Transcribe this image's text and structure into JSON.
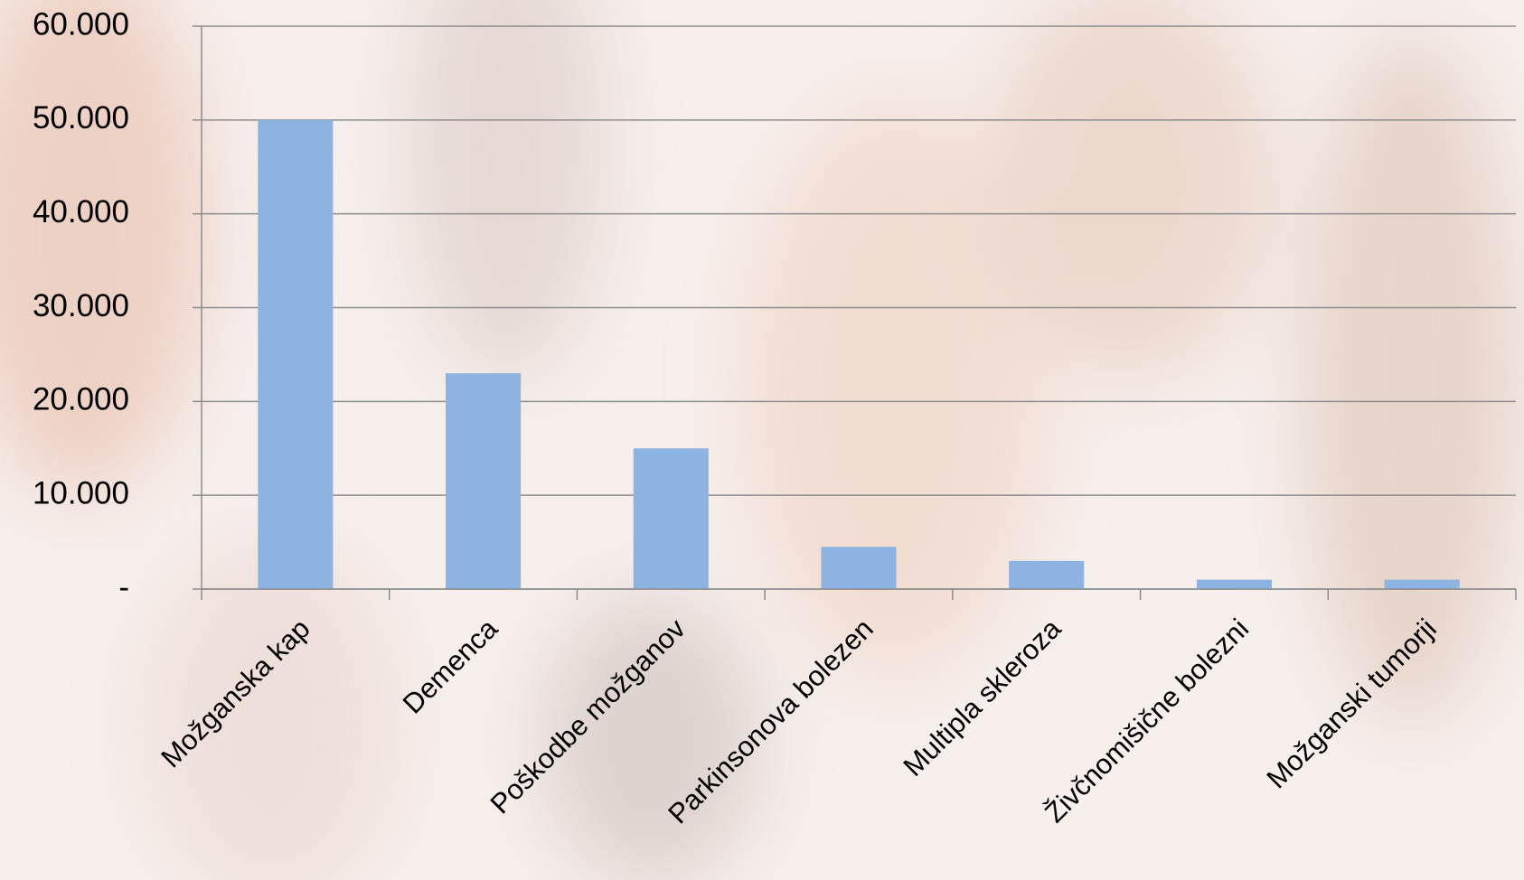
{
  "chart_data": {
    "type": "bar",
    "categories": [
      "Možganska kap",
      "Demenca",
      "Poškodbe možganov",
      "Parkinsonova bolezen",
      "Multipla skleroza",
      "Živčnomišične bolezni",
      "Možganski tumorji"
    ],
    "values": [
      50000,
      23000,
      15000,
      4500,
      3000,
      1000,
      1000
    ],
    "color": "#8db3e2",
    "ylim": [
      0,
      60000
    ],
    "yticks": [
      {
        "value": 0,
        "label": "-"
      },
      {
        "value": 10000,
        "label": "10.000"
      },
      {
        "value": 20000,
        "label": "20.000"
      },
      {
        "value": 30000,
        "label": "30.000"
      },
      {
        "value": 40000,
        "label": "40.000"
      },
      {
        "value": 50000,
        "label": "50.000"
      },
      {
        "value": 60000,
        "label": "60.000"
      }
    ],
    "grid": true
  }
}
